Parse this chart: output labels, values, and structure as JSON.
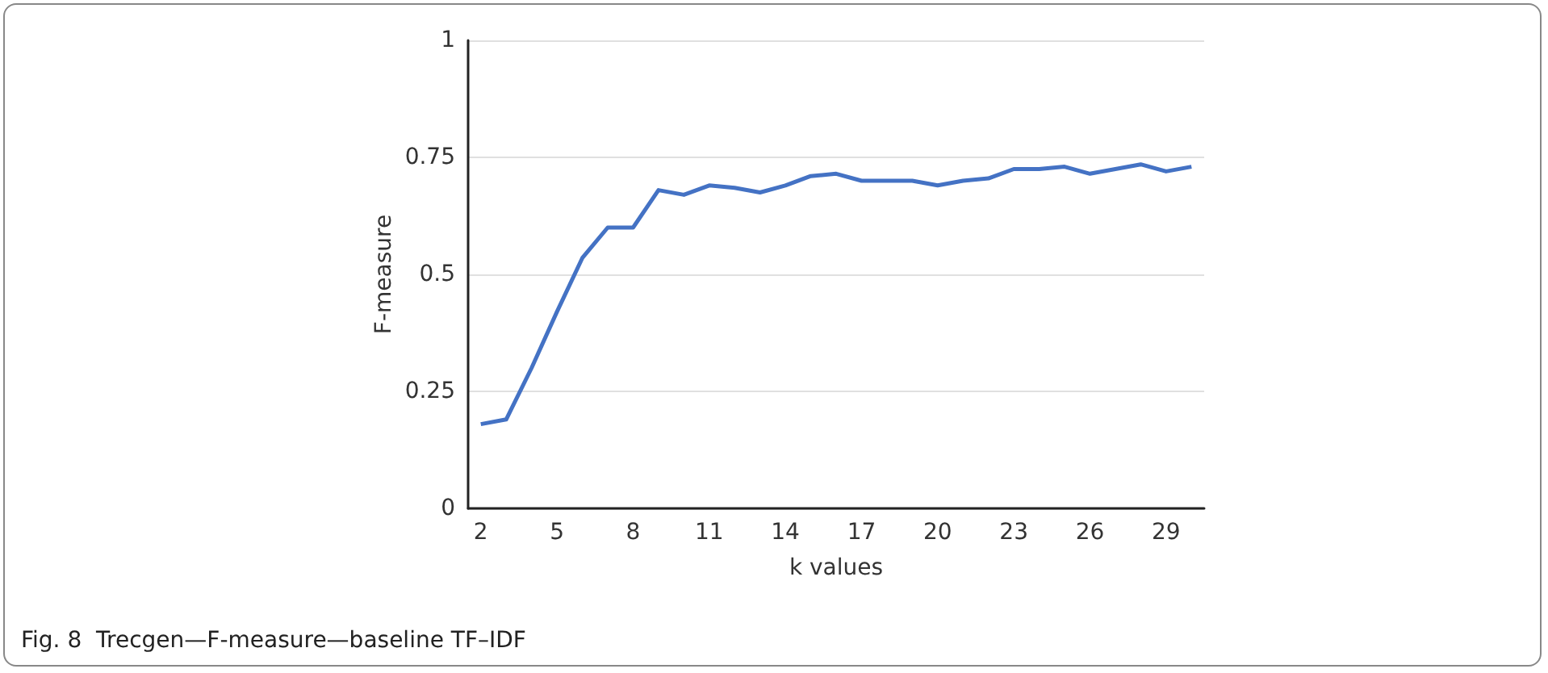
{
  "chart_data": {
    "type": "line",
    "title": "Fig. 8  Trecgen—F-measure—baseline TF–IDF",
    "xlabel": "k values",
    "ylabel": "F-measure",
    "categories": [
      "2",
      null,
      null,
      "5",
      null,
      null,
      "8",
      null,
      null,
      "11",
      null,
      null,
      "14",
      null,
      null,
      "17",
      null,
      null,
      "20",
      null,
      null,
      "23",
      null,
      null,
      "26",
      null,
      null,
      "29",
      null
    ],
    "series": [
      {
        "color": "#4472c4",
        "values": [
          0.18,
          0.19,
          0.3,
          0.42,
          0.535,
          0.6,
          0.6,
          0.68,
          0.67,
          0.69,
          0.685,
          0.675,
          0.69,
          0.71,
          0.715,
          0.7,
          0.7,
          0.7,
          0.69,
          0.7,
          0.705,
          0.725,
          0.725,
          0.73,
          0.715,
          0.725,
          0.735,
          0.72,
          0.73
        ]
      }
    ],
    "ylim": [
      0,
      1
    ],
    "yticks": [
      0,
      0.25,
      0.5,
      0.75,
      1
    ],
    "grid": "y",
    "marker": "none",
    "line_style": "solid"
  }
}
